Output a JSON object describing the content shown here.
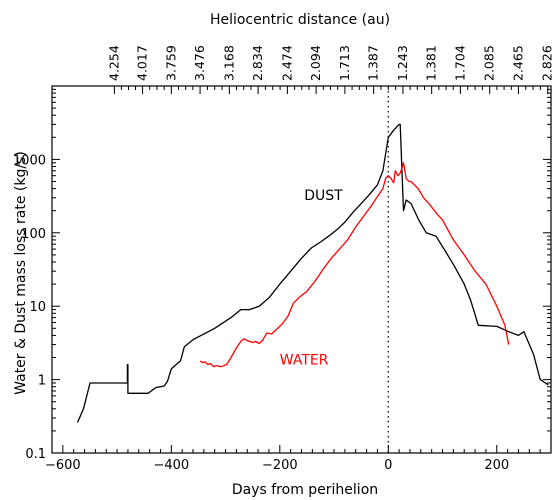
{
  "chart_data": {
    "type": "line",
    "title": "",
    "xlabel": "Days from perihelion",
    "ylabel": "Water & Dust mass loss rate (kg/s)",
    "top_axis_label": "Heliocentric distance (au)",
    "xlim": [
      -620,
      300
    ],
    "ylim": [
      0.1,
      10000
    ],
    "yscale": "log",
    "x_ticks": [
      -600,
      -400,
      -200,
      0,
      200
    ],
    "x_tick_labels": [
      "−600",
      "−400",
      "−200",
      "0",
      "200"
    ],
    "y_ticks": [
      0.1,
      1,
      10,
      100,
      1000
    ],
    "y_tick_labels": [
      "0.1",
      "1",
      "10",
      "100",
      "1000"
    ],
    "top_ticks": [
      {
        "x": -505,
        "label": "4.254"
      },
      {
        "x": -453,
        "label": "4.017"
      },
      {
        "x": -400,
        "label": "3.759"
      },
      {
        "x": -347,
        "label": "3.476"
      },
      {
        "x": -293,
        "label": "3.168"
      },
      {
        "x": -240,
        "label": "2.834"
      },
      {
        "x": -186,
        "label": "2.474"
      },
      {
        "x": -133,
        "label": "2.094"
      },
      {
        "x": -80,
        "label": "1.713"
      },
      {
        "x": -27,
        "label": "1.387"
      },
      {
        "x": 27,
        "label": "1.243"
      },
      {
        "x": 80,
        "label": "1.381"
      },
      {
        "x": 133,
        "label": "1.704"
      },
      {
        "x": 187,
        "label": "2.085"
      },
      {
        "x": 240,
        "label": "2.465"
      },
      {
        "x": 294,
        "label": "2.826"
      }
    ],
    "perihelion_line_x": 0,
    "grid": false,
    "series": [
      {
        "name": "DUST",
        "color": "#000000",
        "label_at": {
          "x": -155,
          "y": 280
        },
        "x": [
          -573,
          -562,
          -550,
          -537,
          -493,
          -481,
          -481,
          -480,
          -480,
          -471,
          -450,
          -443,
          -428,
          -420,
          -413,
          -407,
          -400,
          -383,
          -376,
          -360,
          -320,
          -290,
          -272,
          -260,
          -256,
          -238,
          -220,
          -200,
          -180,
          -160,
          -142,
          -125,
          -110,
          -95,
          -80,
          -65,
          -50,
          -35,
          -20,
          -10,
          0,
          10,
          20,
          22,
          28,
          33,
          42,
          56,
          70,
          88,
          106,
          122,
          140,
          152,
          166,
          200,
          222,
          240,
          250,
          268,
          280,
          295
        ],
        "y": [
          0.26,
          0.4,
          0.9,
          0.9,
          0.9,
          0.9,
          1.6,
          1.6,
          0.65,
          0.65,
          0.65,
          0.65,
          0.78,
          0.8,
          0.82,
          0.95,
          1.4,
          1.8,
          2.8,
          3.5,
          5,
          7,
          9,
          9,
          9,
          10,
          13,
          20,
          30,
          45,
          62,
          75,
          90,
          110,
          140,
          190,
          250,
          330,
          450,
          700,
          2000,
          2500,
          3000,
          3000,
          200,
          280,
          250,
          150,
          100,
          90,
          55,
          35,
          20,
          12,
          5.5,
          5.3,
          4.5,
          4,
          4.5,
          2.2,
          1.0,
          0.85
        ]
      },
      {
        "name": "WATER",
        "color": "#ff0000",
        "label_at": {
          "x": -200,
          "y": 1.6
        },
        "x": [
          -347,
          -342,
          -338,
          -333,
          -328,
          -322,
          -317,
          -308,
          -298,
          -290,
          -280,
          -272,
          -266,
          -260,
          -250,
          -245,
          -238,
          -232,
          -224,
          -215,
          -205,
          -195,
          -185,
          -175,
          -165,
          -150,
          -135,
          -120,
          -105,
          -90,
          -75,
          -60,
          -45,
          -30,
          -20,
          -10,
          -5,
          0,
          5,
          10,
          13,
          18,
          22,
          25,
          28,
          33,
          38,
          42,
          55,
          60,
          65,
          75,
          90,
          100,
          120,
          140,
          160,
          180,
          200,
          215,
          222
        ],
        "y": [
          1.8,
          1.7,
          1.75,
          1.6,
          1.65,
          1.5,
          1.55,
          1.5,
          1.6,
          2.0,
          2.7,
          3.3,
          3.6,
          3.4,
          3.2,
          3.3,
          3.1,
          3.4,
          4.3,
          4.2,
          4.9,
          5.8,
          7.3,
          11,
          13,
          16,
          22,
          32,
          45,
          60,
          80,
          120,
          170,
          240,
          310,
          400,
          550,
          600,
          550,
          480,
          700,
          600,
          650,
          750,
          900,
          550,
          500,
          500,
          400,
          350,
          300,
          250,
          180,
          150,
          80,
          50,
          30,
          20,
          10,
          5.5,
          3.0
        ]
      }
    ]
  }
}
